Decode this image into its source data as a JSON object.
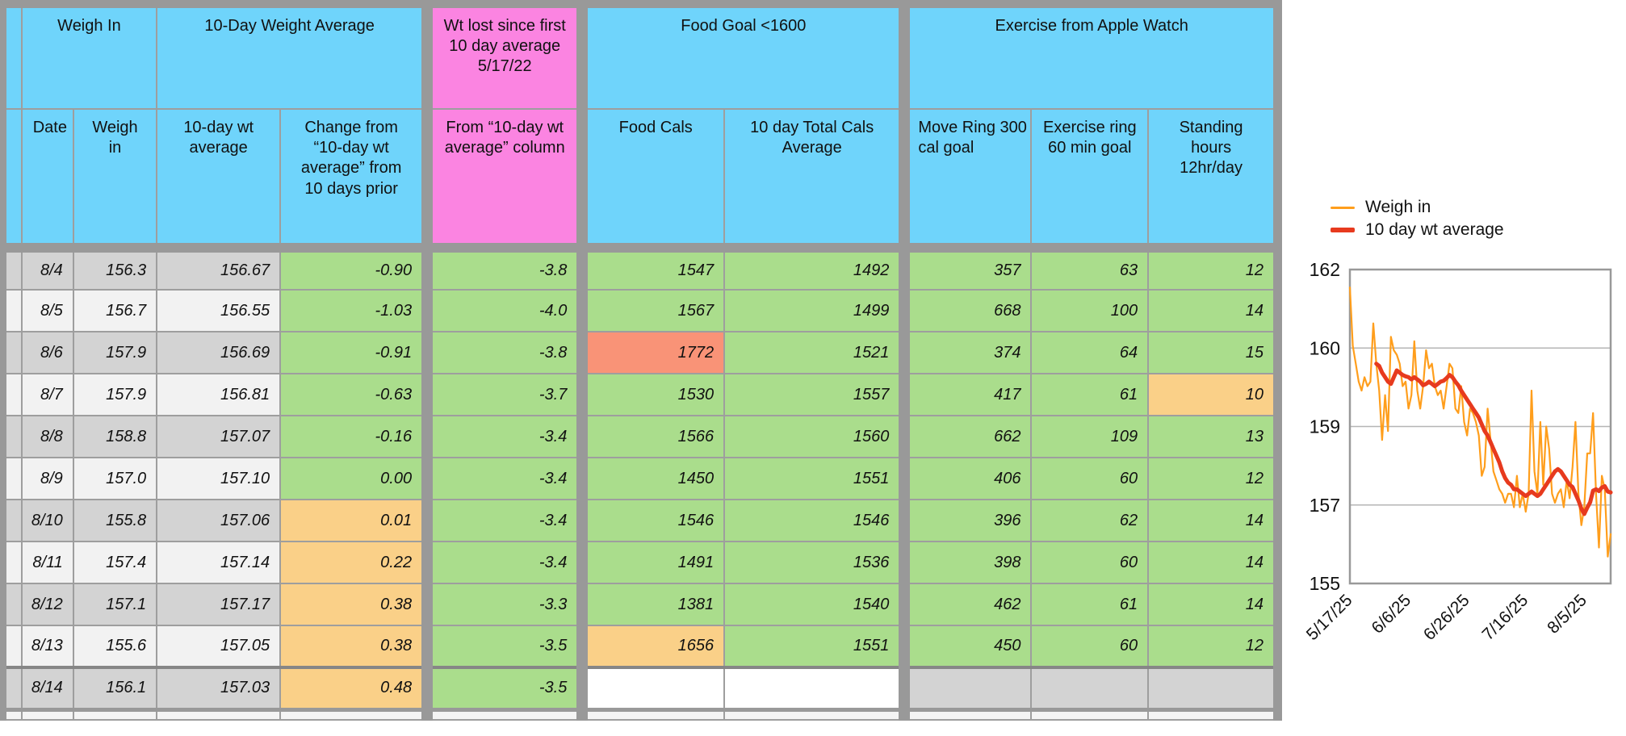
{
  "colors": {
    "header_blue": "#6fd4fb",
    "header_pink": "#fb84e1",
    "cell_green": "#aadd8c",
    "cell_orange": "#fad088",
    "cell_red": "#f99377",
    "row_dark": "#d3d3d3",
    "row_light": "#f2f2f2",
    "border_gray": "#999999",
    "line_orange": "#ff9e1c",
    "line_red": "#e73a1e"
  },
  "table": {
    "groups": [
      {
        "label": "Weigh In"
      },
      {
        "label": "10-Day Weight Average"
      },
      {
        "label": "Wt lost since first 10 day average 5/17/22"
      },
      {
        "label": "Food Goal <1600"
      },
      {
        "label": "Exercise from Apple Watch"
      }
    ],
    "columns": [
      "Date",
      "Weigh in",
      "10-day wt average",
      "Change from “10-day wt average” from 10 days prior",
      "From “10-day wt average” column",
      "Food Cals",
      "10 day Total Cals Average",
      "Move Ring 300 cal goal",
      "Exercise ring 60 min goal",
      "Standing hours 12hr/day"
    ],
    "rows": [
      {
        "date": "8/4",
        "weigh": "156.3",
        "avg": "156.67",
        "change": "-0.90",
        "change_bg": "green",
        "lost": "-3.8",
        "lost_bg": "green",
        "food": "1547",
        "food_bg": "green",
        "cals": "1492",
        "cals_bg": "green",
        "move": "357",
        "move_bg": "green",
        "ring": "63",
        "ring_bg": "green",
        "stand": "12",
        "stand_bg": "green",
        "shade": "dark"
      },
      {
        "date": "8/5",
        "weigh": "156.7",
        "avg": "156.55",
        "change": "-1.03",
        "change_bg": "green",
        "lost": "-4.0",
        "lost_bg": "green",
        "food": "1567",
        "food_bg": "green",
        "cals": "1499",
        "cals_bg": "green",
        "move": "668",
        "move_bg": "green",
        "ring": "100",
        "ring_bg": "green",
        "stand": "14",
        "stand_bg": "green",
        "shade": "light"
      },
      {
        "date": "8/6",
        "weigh": "157.9",
        "avg": "156.69",
        "change": "-0.91",
        "change_bg": "green",
        "lost": "-3.8",
        "lost_bg": "green",
        "food": "1772",
        "food_bg": "red",
        "cals": "1521",
        "cals_bg": "green",
        "move": "374",
        "move_bg": "green",
        "ring": "64",
        "ring_bg": "green",
        "stand": "15",
        "stand_bg": "green",
        "shade": "dark"
      },
      {
        "date": "8/7",
        "weigh": "157.9",
        "avg": "156.81",
        "change": "-0.63",
        "change_bg": "green",
        "lost": "-3.7",
        "lost_bg": "green",
        "food": "1530",
        "food_bg": "green",
        "cals": "1557",
        "cals_bg": "green",
        "move": "417",
        "move_bg": "green",
        "ring": "61",
        "ring_bg": "green",
        "stand": "10",
        "stand_bg": "orange",
        "shade": "light"
      },
      {
        "date": "8/8",
        "weigh": "158.8",
        "avg": "157.07",
        "change": "-0.16",
        "change_bg": "green",
        "lost": "-3.4",
        "lost_bg": "green",
        "food": "1566",
        "food_bg": "green",
        "cals": "1560",
        "cals_bg": "green",
        "move": "662",
        "move_bg": "green",
        "ring": "109",
        "ring_bg": "green",
        "stand": "13",
        "stand_bg": "green",
        "shade": "dark"
      },
      {
        "date": "8/9",
        "weigh": "157.0",
        "avg": "157.10",
        "change": "0.00",
        "change_bg": "green",
        "lost": "-3.4",
        "lost_bg": "green",
        "food": "1450",
        "food_bg": "green",
        "cals": "1551",
        "cals_bg": "green",
        "move": "406",
        "move_bg": "green",
        "ring": "60",
        "ring_bg": "green",
        "stand": "12",
        "stand_bg": "green",
        "shade": "light"
      },
      {
        "date": "8/10",
        "weigh": "155.8",
        "avg": "157.06",
        "change": "0.01",
        "change_bg": "orange",
        "lost": "-3.4",
        "lost_bg": "green",
        "food": "1546",
        "food_bg": "green",
        "cals": "1546",
        "cals_bg": "green",
        "move": "396",
        "move_bg": "green",
        "ring": "62",
        "ring_bg": "green",
        "stand": "14",
        "stand_bg": "green",
        "shade": "dark"
      },
      {
        "date": "8/11",
        "weigh": "157.4",
        "avg": "157.14",
        "change": "0.22",
        "change_bg": "orange",
        "lost": "-3.4",
        "lost_bg": "green",
        "food": "1491",
        "food_bg": "green",
        "cals": "1536",
        "cals_bg": "green",
        "move": "398",
        "move_bg": "green",
        "ring": "60",
        "ring_bg": "green",
        "stand": "14",
        "stand_bg": "green",
        "shade": "light"
      },
      {
        "date": "8/12",
        "weigh": "157.1",
        "avg": "157.17",
        "change": "0.38",
        "change_bg": "orange",
        "lost": "-3.3",
        "lost_bg": "green",
        "food": "1381",
        "food_bg": "green",
        "cals": "1540",
        "cals_bg": "green",
        "move": "462",
        "move_bg": "green",
        "ring": "61",
        "ring_bg": "green",
        "stand": "14",
        "stand_bg": "green",
        "shade": "dark"
      },
      {
        "date": "8/13",
        "weigh": "155.6",
        "avg": "157.05",
        "change": "0.38",
        "change_bg": "orange",
        "lost": "-3.5",
        "lost_bg": "green",
        "food": "1656",
        "food_bg": "orange",
        "cals": "1551",
        "cals_bg": "green",
        "move": "450",
        "move_bg": "green",
        "ring": "60",
        "ring_bg": "green",
        "stand": "12",
        "stand_bg": "green",
        "shade": "light"
      },
      {
        "date": "8/14",
        "weigh": "156.1",
        "avg": "157.03",
        "change": "0.48",
        "change_bg": "orange",
        "lost": "-3.5",
        "lost_bg": "green",
        "food": "",
        "food_bg": "white",
        "cals": "",
        "cals_bg": "white",
        "move": "",
        "move_bg": "gray",
        "ring": "",
        "ring_bg": "gray",
        "stand": "",
        "stand_bg": "gray",
        "shade": "dark"
      }
    ]
  },
  "chart_data": {
    "type": "line",
    "title": "",
    "y_axis": {
      "min": 155,
      "max": 162
    },
    "y_tick_labels": [
      "162",
      "160",
      "159",
      "157",
      "155"
    ],
    "x_tick_labels": [
      "5/17/25",
      "6/6/25",
      "6/26/25",
      "7/16/25",
      "8/5/25"
    ],
    "x_tick_days": [
      0,
      20,
      40,
      60,
      80
    ],
    "legend_position": "top",
    "grid": true,
    "series": [
      {
        "name": "Weigh in",
        "color": "#ff9e1c",
        "width": 2.2,
        "start_day": 0,
        "values": [
          161.6,
          160.3,
          159.9,
          159.5,
          159.3,
          159.6,
          159.4,
          159.5,
          160.8,
          159.9,
          159.3,
          158.2,
          159.2,
          158.4,
          160.5,
          160.2,
          160.1,
          159.9,
          159.4,
          159.5,
          158.9,
          159.2,
          160.4,
          159.3,
          158.9,
          159.4,
          160.2,
          159.8,
          159.9,
          159.4,
          159.2,
          159.3,
          158.9,
          159.4,
          159.9,
          159.8,
          158.9,
          158.8,
          159.4,
          158.6,
          158.3,
          158.9,
          158.8,
          158.6,
          158.3,
          157.4,
          157.6,
          158.9,
          158.2,
          157.5,
          157.3,
          157.1,
          157.0,
          156.8,
          157.0,
          157.0,
          156.7,
          157.4,
          156.7,
          157.0,
          156.6,
          157.0,
          159.3,
          157.5,
          157.0,
          158.6,
          157.2,
          158.5,
          158.0,
          157.0,
          156.8,
          157.0,
          157.1,
          156.7,
          157.3,
          156.9,
          157.6,
          158.6,
          157.0,
          156.3,
          156.7,
          157.9,
          157.9,
          158.8,
          157.0,
          155.8,
          157.4,
          157.1,
          155.6,
          156.1
        ]
      },
      {
        "name": "10 day wt average",
        "color": "#e73a1e",
        "width": 5,
        "start_day": 9,
        "values": [
          159.9,
          159.85,
          159.7,
          159.6,
          159.5,
          159.45,
          159.6,
          159.75,
          159.7,
          159.65,
          159.62,
          159.6,
          159.55,
          159.6,
          159.55,
          159.5,
          159.42,
          159.45,
          159.5,
          159.45,
          159.4,
          159.45,
          159.5,
          159.52,
          159.58,
          159.65,
          159.6,
          159.5,
          159.42,
          159.3,
          159.2,
          159.1,
          159.0,
          158.9,
          158.8,
          158.7,
          158.55,
          158.4,
          158.3,
          158.15,
          158.0,
          157.85,
          157.7,
          157.5,
          157.35,
          157.25,
          157.2,
          157.1,
          157.1,
          157.05,
          157.0,
          156.95,
          157.0,
          157.05,
          157.0,
          156.95,
          157.0,
          157.1,
          157.2,
          157.3,
          157.4,
          157.5,
          157.55,
          157.5,
          157.4,
          157.3,
          157.2,
          157.15,
          157.0,
          156.85,
          156.67,
          156.55,
          156.69,
          156.81,
          157.07,
          157.1,
          157.06,
          157.14,
          157.17,
          157.05,
          157.03
        ]
      }
    ]
  }
}
